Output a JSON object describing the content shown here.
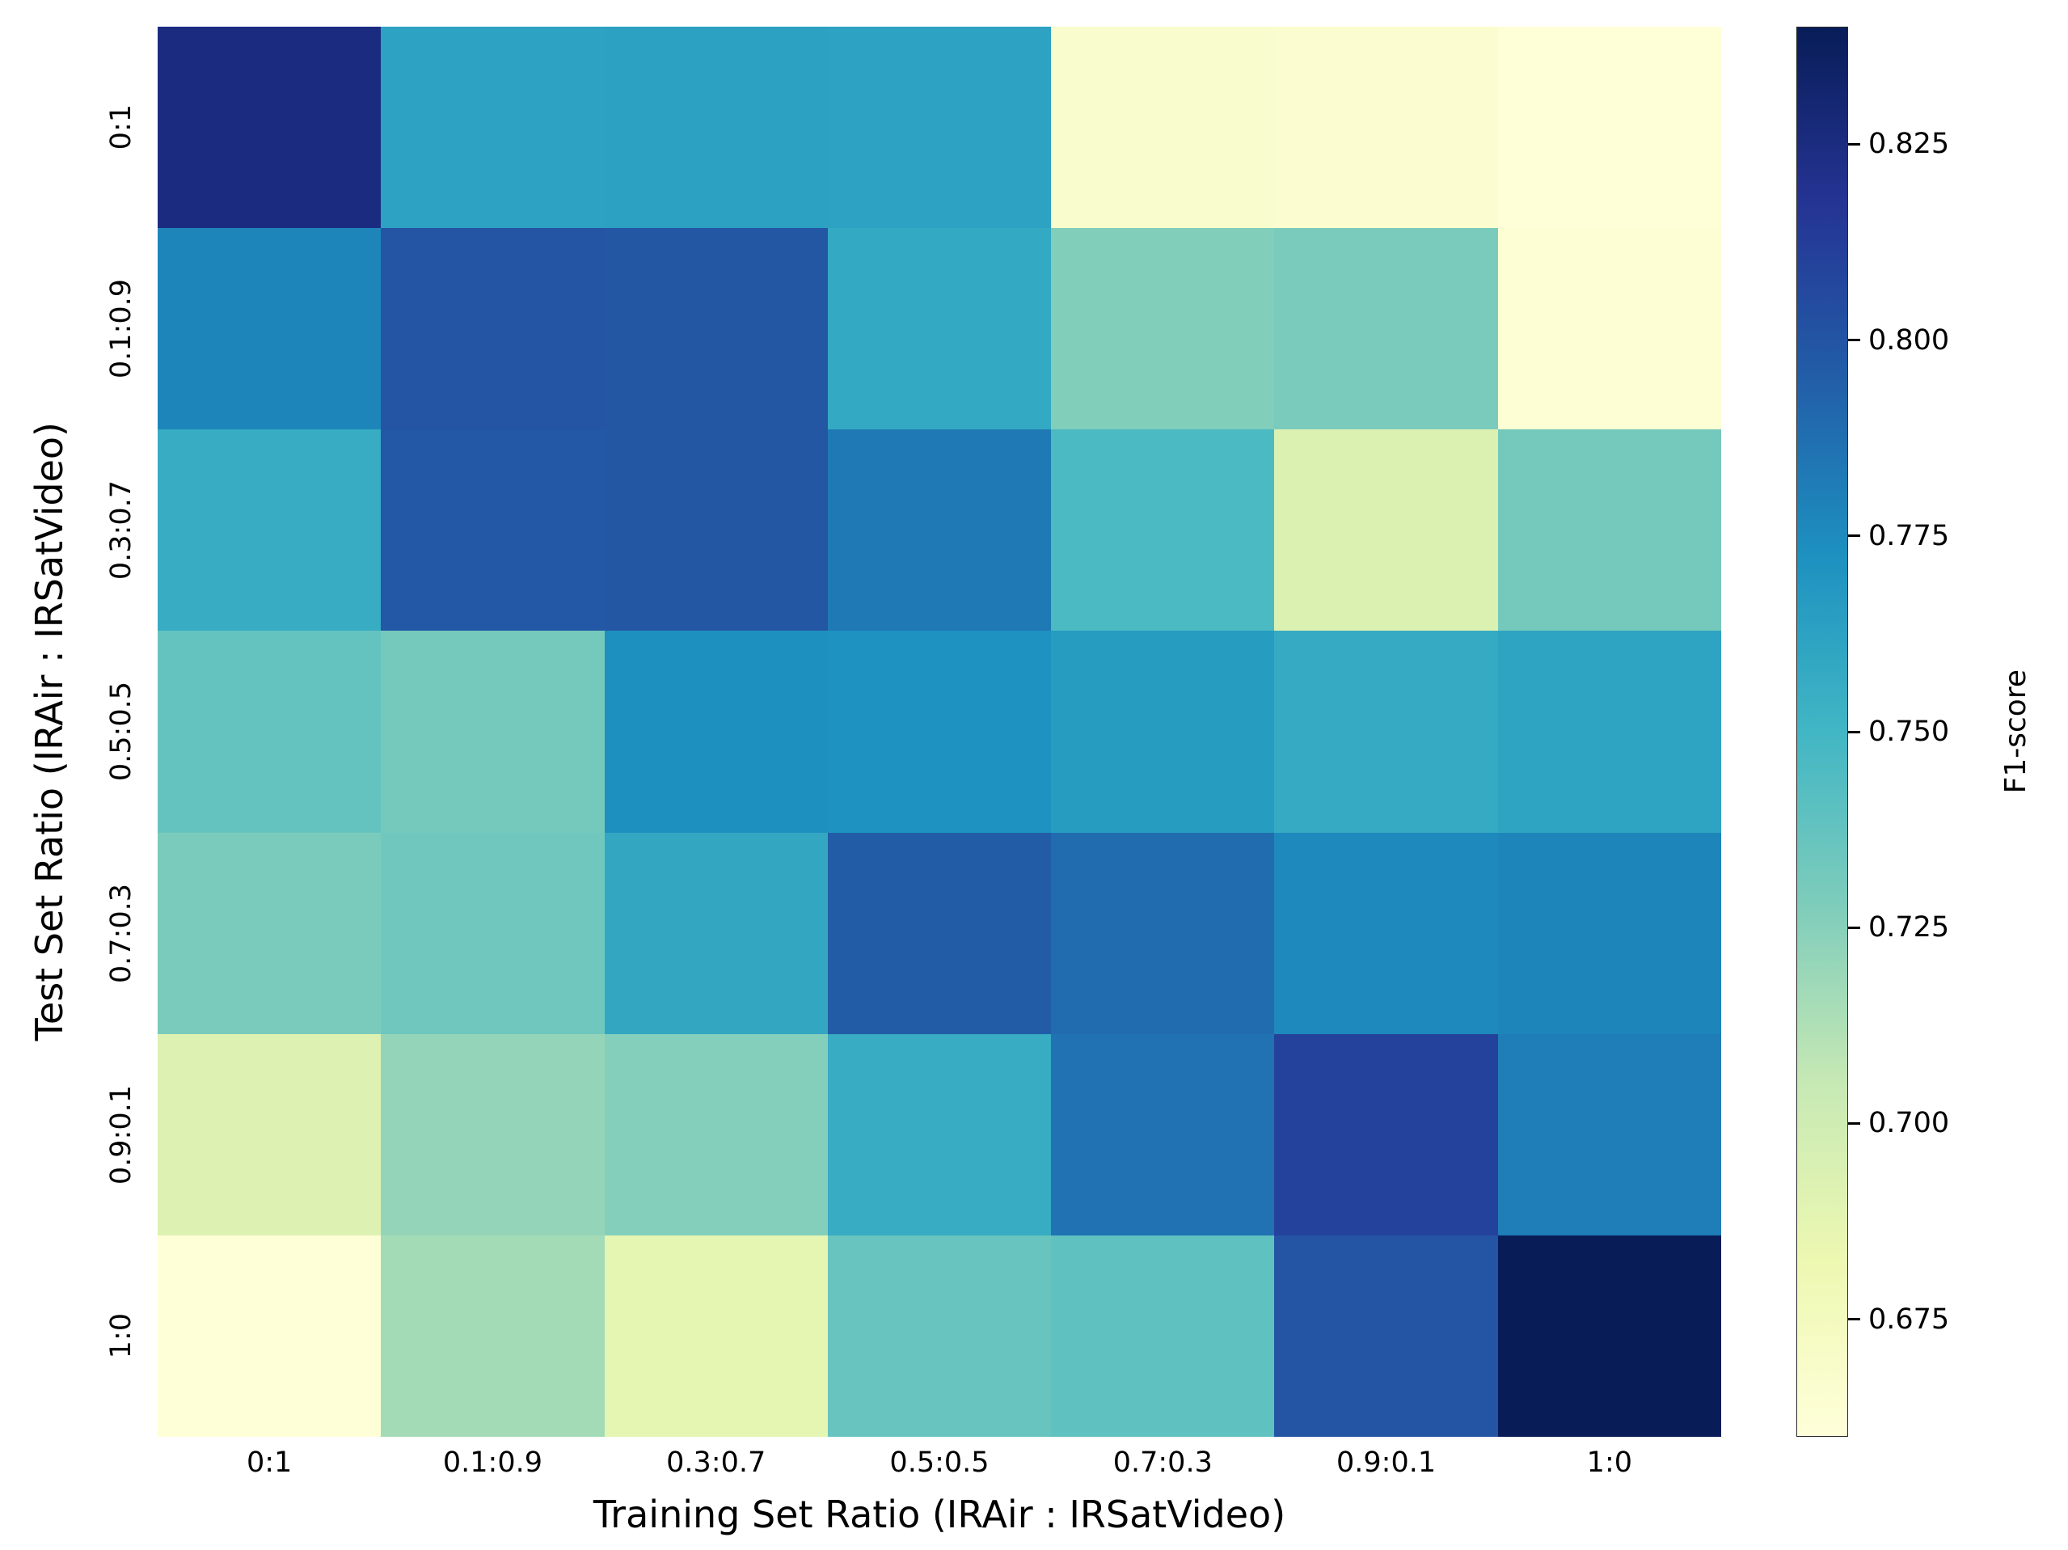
{
  "chart_data": {
    "type": "heatmap",
    "title": "",
    "xlabel": "Training Set Ratio (IRAir : IRSatVideo)",
    "ylabel": "Test Set Ratio (IRAir : IRSatVideo)",
    "colorbar_label": "F1-score",
    "colormap": "YlGnBu",
    "vmin": 0.66,
    "vmax": 0.84,
    "colorbar_ticks": [
      0.675,
      0.7,
      0.725,
      0.75,
      0.775,
      0.8,
      0.825
    ],
    "x_categories": [
      "0:1",
      "0.1:0.9",
      "0.3:0.7",
      "0.5:0.5",
      "0.7:0.3",
      "0.9:0.1",
      "1:0"
    ],
    "y_categories": [
      "0:1",
      "0.1:0.9",
      "0.3:0.7",
      "0.5:0.5",
      "0.7:0.3",
      "0.9:0.1",
      "1:0"
    ],
    "values": [
      [
        0.825,
        0.762,
        0.763,
        0.762,
        0.667,
        0.665,
        0.661
      ],
      [
        0.778,
        0.8,
        0.799,
        0.758,
        0.727,
        0.729,
        0.663
      ],
      [
        0.756,
        0.798,
        0.799,
        0.783,
        0.746,
        0.693,
        0.731
      ],
      [
        0.737,
        0.731,
        0.773,
        0.772,
        0.766,
        0.757,
        0.761
      ],
      [
        0.729,
        0.733,
        0.759,
        0.796,
        0.789,
        0.776,
        0.778
      ],
      [
        0.692,
        0.721,
        0.726,
        0.756,
        0.786,
        0.81,
        0.781
      ],
      [
        0.661,
        0.716,
        0.687,
        0.736,
        0.739,
        0.8,
        0.84
      ]
    ],
    "legend_position": "right",
    "grid": false
  }
}
